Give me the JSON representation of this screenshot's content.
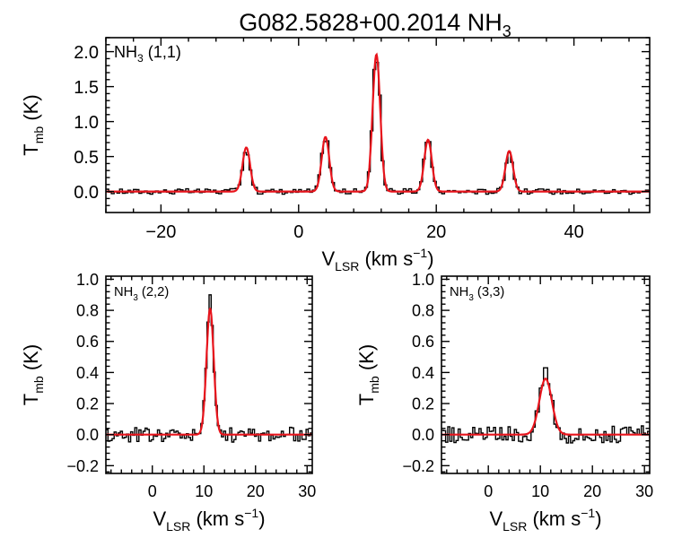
{
  "title": {
    "object": "G082.5828+00.2014 NH",
    "sub": "3"
  },
  "chart_data": [
    {
      "type": "line",
      "panel": "top",
      "line_label": {
        "base": "NH",
        "sub": "3",
        "suffix": " (1,1)"
      },
      "xlim": [
        -28,
        51
      ],
      "ylim": [
        -0.3,
        2.2
      ],
      "xticks": [
        -20,
        0,
        20,
        40
      ],
      "xtick_labels": [
        "−20",
        "0",
        "20",
        "40"
      ],
      "yticks": [
        0.0,
        0.5,
        1.0,
        1.5,
        2.0
      ],
      "ytick_labels": [
        "0.0",
        "0.5",
        "1.0",
        "1.5",
        "2.0"
      ],
      "xlabel": {
        "base": "V",
        "sub": "LSR",
        "unit": " (km s",
        "exp": "−1",
        "close": ")"
      },
      "ylabel": {
        "base": "T",
        "sub": "mb",
        "unit": " (K)"
      },
      "series": [
        {
          "name": "fit",
          "color": "#e8141c",
          "components": [
            {
              "center": -7.6,
              "amp": 0.63,
              "sigma": 0.55
            },
            {
              "center": 3.9,
              "amp": 0.78,
              "sigma": 0.55
            },
            {
              "center": 11.3,
              "amp": 1.96,
              "sigma": 0.55
            },
            {
              "center": 18.8,
              "amp": 0.74,
              "sigma": 0.55
            },
            {
              "center": 30.6,
              "amp": 0.58,
              "sigma": 0.55
            }
          ]
        },
        {
          "name": "observed",
          "color": "#000000",
          "step": 0.4,
          "noise": 0.025
        }
      ]
    },
    {
      "type": "line",
      "panel": "bottom-left",
      "line_label": {
        "base": "NH",
        "sub": "3",
        "suffix": " (2,2)"
      },
      "xlim": [
        -9,
        31
      ],
      "ylim": [
        -0.25,
        1.02
      ],
      "xticks": [
        0,
        10,
        20,
        30
      ],
      "xtick_labels": [
        "0",
        "10",
        "20",
        "30"
      ],
      "yticks": [
        -0.2,
        0.0,
        0.2,
        0.4,
        0.6,
        0.8,
        1.0
      ],
      "ytick_labels": [
        "−0.2",
        "0.0",
        "0.2",
        "0.4",
        "0.6",
        "0.8",
        "1.0"
      ],
      "xlabel": {
        "base": "V",
        "sub": "LSR",
        "unit": " (km s",
        "exp": "−1",
        "close": ")"
      },
      "ylabel": {
        "base": "T",
        "sub": "mb",
        "unit": " (K)"
      },
      "series": [
        {
          "name": "fit",
          "color": "#e8141c",
          "components": [
            {
              "center": 11.2,
              "amp": 0.81,
              "sigma": 0.7
            }
          ]
        },
        {
          "name": "observed",
          "color": "#000000",
          "step": 0.4,
          "noise": 0.03,
          "peak": 0.9
        }
      ]
    },
    {
      "type": "line",
      "panel": "bottom-right",
      "line_label": {
        "base": "NH",
        "sub": "3",
        "suffix": " (3,3)"
      },
      "xlim": [
        -9,
        31
      ],
      "ylim": [
        -0.25,
        1.02
      ],
      "xticks": [
        0,
        10,
        20,
        30
      ],
      "xtick_labels": [
        "0",
        "10",
        "20",
        "30"
      ],
      "yticks": [
        -0.2,
        0.0,
        0.2,
        0.4,
        0.6,
        0.8,
        1.0
      ],
      "ytick_labels": [
        "−0.2",
        "0.0",
        "0.2",
        "0.4",
        "0.6",
        "0.8",
        "1.0"
      ],
      "xlabel": {
        "base": "V",
        "sub": "LSR",
        "unit": " (km s",
        "exp": "−1",
        "close": ")"
      },
      "ylabel": {
        "base": "T",
        "sub": "mb",
        "unit": " (K)"
      },
      "series": [
        {
          "name": "fit",
          "color": "#e8141c",
          "components": [
            {
              "center": 11.0,
              "amp": 0.36,
              "sigma": 1.2
            }
          ]
        },
        {
          "name": "observed",
          "color": "#000000",
          "step": 0.4,
          "noise": 0.035,
          "peak": 0.43
        }
      ]
    }
  ]
}
